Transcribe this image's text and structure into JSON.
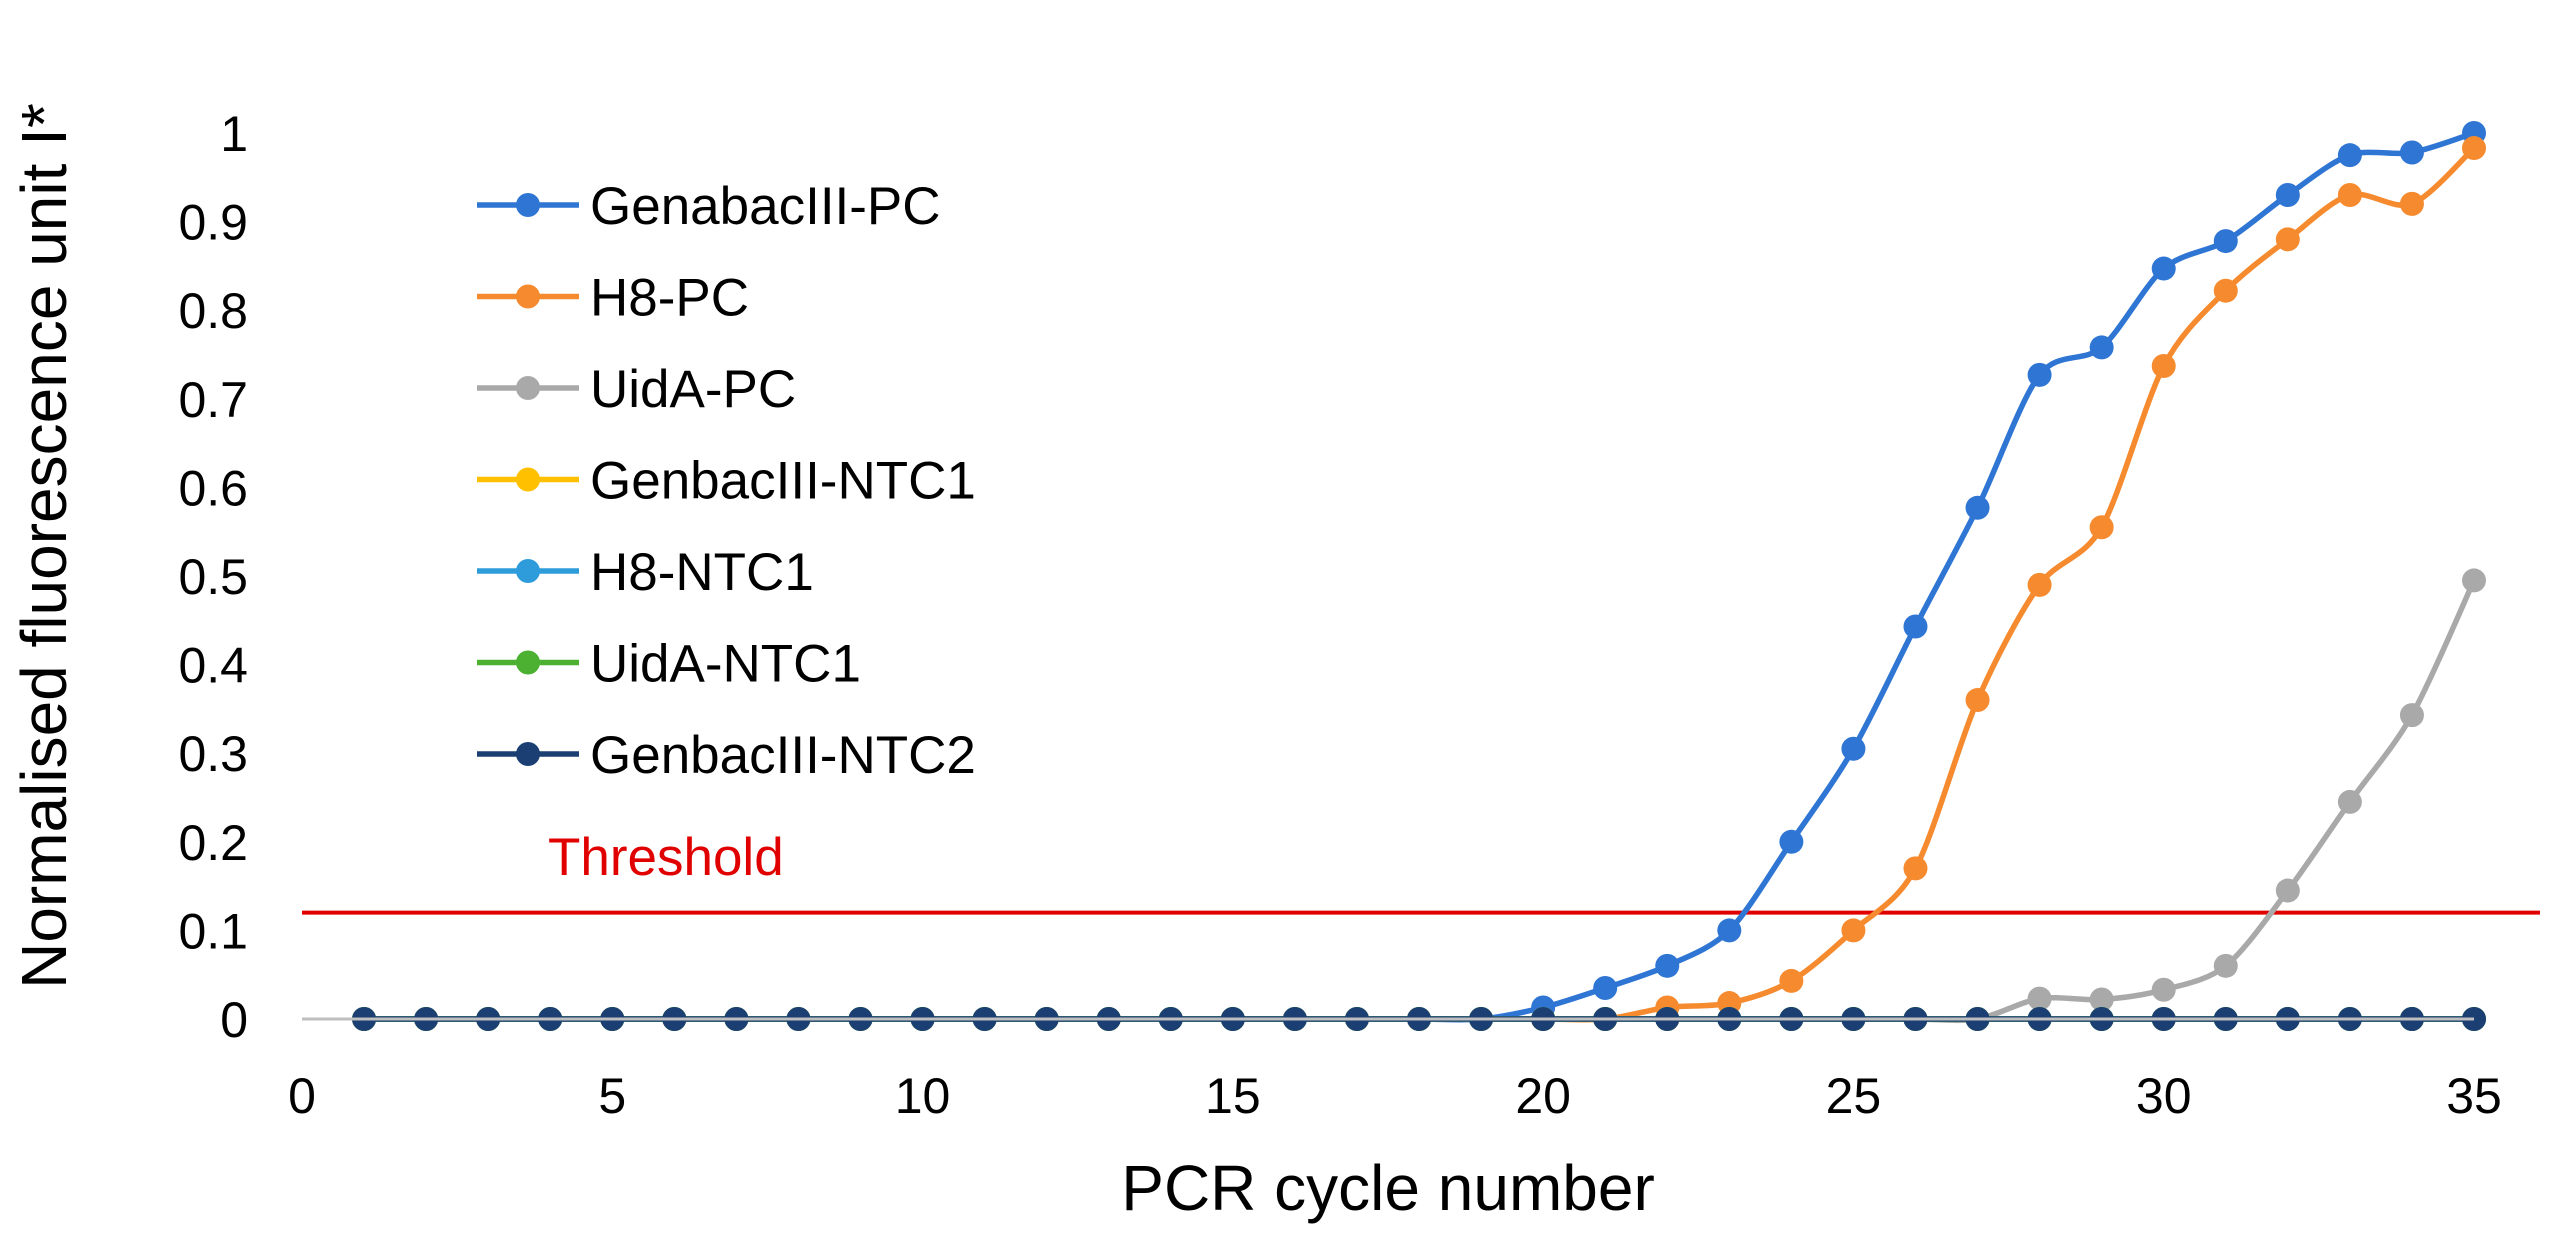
{
  "chart_data": {
    "type": "line",
    "title": "",
    "xlabel": "PCR cycle number",
    "ylabel": "Normalised fluorescence unit I*",
    "xlim": [
      0,
      35
    ],
    "ylim": [
      0,
      1
    ],
    "x_ticks": [
      0,
      5,
      10,
      15,
      20,
      25,
      30,
      35
    ],
    "y_ticks": [
      0,
      0.1,
      0.2,
      0.3,
      0.4,
      0.5,
      0.6,
      0.7,
      0.8,
      0.9,
      1
    ],
    "grid": false,
    "legend_position": "top-left",
    "threshold": {
      "label": "Threshold",
      "value": 0.12,
      "color": "#E00000"
    },
    "series": [
      {
        "name": "GenabacIII-PC",
        "color": "#2E75D4",
        "x": [
          1,
          2,
          3,
          4,
          5,
          6,
          7,
          8,
          9,
          10,
          11,
          12,
          13,
          14,
          15,
          16,
          17,
          18,
          19,
          20,
          21,
          22,
          23,
          24,
          25,
          26,
          27,
          28,
          29,
          30,
          31,
          32,
          33,
          34,
          35
        ],
        "y": [
          0,
          0,
          0,
          0,
          0,
          0,
          0,
          0,
          0,
          0,
          0,
          0,
          0,
          0,
          0,
          0,
          0,
          0,
          0,
          0.013,
          0.035,
          0.06,
          0.1,
          0.2,
          0.305,
          0.443,
          0.577,
          0.727,
          0.758,
          0.847,
          0.878,
          0.93,
          0.975,
          0.978,
          1.0
        ]
      },
      {
        "name": "H8-PC",
        "color": "#F58A2E",
        "x": [
          1,
          2,
          3,
          4,
          5,
          6,
          7,
          8,
          9,
          10,
          11,
          12,
          13,
          14,
          15,
          16,
          17,
          18,
          19,
          20,
          21,
          22,
          23,
          24,
          25,
          26,
          27,
          28,
          29,
          30,
          31,
          32,
          33,
          34,
          35
        ],
        "y": [
          0,
          0,
          0,
          0,
          0,
          0,
          0,
          0,
          0,
          0,
          0,
          0,
          0,
          0,
          0,
          0,
          0,
          0,
          0,
          0,
          0,
          0.013,
          0.018,
          0.043,
          0.1,
          0.17,
          0.36,
          0.49,
          0.555,
          0.737,
          0.822,
          0.88,
          0.93,
          0.92,
          0.983
        ]
      },
      {
        "name": "UidA-PC",
        "color": "#A9A9A9",
        "x": [
          1,
          2,
          3,
          4,
          5,
          6,
          7,
          8,
          9,
          10,
          11,
          12,
          13,
          14,
          15,
          16,
          17,
          18,
          19,
          20,
          21,
          22,
          23,
          24,
          25,
          26,
          27,
          28,
          29,
          30,
          31,
          32,
          33,
          34,
          35
        ],
        "y": [
          0,
          0,
          0,
          0,
          0,
          0,
          0,
          0,
          0,
          0,
          0,
          0,
          0,
          0,
          0,
          0,
          0,
          0,
          0,
          0,
          0,
          0,
          0,
          0,
          0,
          0,
          0,
          0.023,
          0.022,
          0.033,
          0.06,
          0.145,
          0.245,
          0.343,
          0.495
        ]
      },
      {
        "name": "GenbacIII-NTC1",
        "color": "#FFC000",
        "x": [
          1,
          2,
          3,
          4,
          5,
          6,
          7,
          8,
          9,
          10,
          11,
          12,
          13,
          14,
          15,
          16,
          17,
          18,
          19,
          20,
          21,
          22,
          23,
          24,
          25,
          26,
          27,
          28,
          29,
          30,
          31,
          32,
          33,
          34,
          35
        ],
        "y": [
          0,
          0,
          0,
          0,
          0,
          0,
          0,
          0,
          0,
          0,
          0,
          0,
          0,
          0,
          0,
          0,
          0,
          0,
          0,
          0,
          0,
          0,
          0,
          0,
          0,
          0,
          0,
          0,
          0,
          0,
          0,
          0,
          0,
          0,
          0
        ]
      },
      {
        "name": "H8-NTC1",
        "color": "#2E9BDA",
        "x": [
          1,
          2,
          3,
          4,
          5,
          6,
          7,
          8,
          9,
          10,
          11,
          12,
          13,
          14,
          15,
          16,
          17,
          18,
          19,
          20,
          21,
          22,
          23,
          24,
          25,
          26,
          27,
          28,
          29,
          30,
          31,
          32,
          33,
          34,
          35
        ],
        "y": [
          0,
          0,
          0,
          0,
          0,
          0,
          0,
          0,
          0,
          0,
          0,
          0,
          0,
          0,
          0,
          0,
          0,
          0,
          0,
          0,
          0,
          0,
          0,
          0,
          0,
          0,
          0,
          0,
          0,
          0,
          0,
          0,
          0,
          0,
          0
        ]
      },
      {
        "name": "UidA-NTC1",
        "color": "#4CB030",
        "x": [
          1,
          2,
          3,
          4,
          5,
          6,
          7,
          8,
          9,
          10,
          11,
          12,
          13,
          14,
          15,
          16,
          17,
          18,
          19,
          20,
          21,
          22,
          23,
          24,
          25,
          26,
          27,
          28,
          29,
          30,
          31,
          32,
          33,
          34,
          35
        ],
        "y": [
          0,
          0,
          0,
          0,
          0,
          0,
          0,
          0,
          0,
          0,
          0,
          0,
          0,
          0,
          0,
          0,
          0,
          0,
          0,
          0,
          0,
          0,
          0,
          0,
          0,
          0,
          0,
          0,
          0,
          0,
          0,
          0,
          0,
          0,
          0
        ]
      },
      {
        "name": "GenbacIII-NTC2",
        "color": "#1B3F72",
        "x": [
          1,
          2,
          3,
          4,
          5,
          6,
          7,
          8,
          9,
          10,
          11,
          12,
          13,
          14,
          15,
          16,
          17,
          18,
          19,
          20,
          21,
          22,
          23,
          24,
          25,
          26,
          27,
          28,
          29,
          30,
          31,
          32,
          33,
          34,
          35
        ],
        "y": [
          0,
          0,
          0,
          0,
          0,
          0,
          0,
          0,
          0,
          0,
          0,
          0,
          0,
          0,
          0,
          0,
          0,
          0,
          0,
          0,
          0,
          0,
          0,
          0,
          0,
          0,
          0,
          0,
          0,
          0,
          0,
          0,
          0,
          0,
          0
        ]
      }
    ]
  }
}
